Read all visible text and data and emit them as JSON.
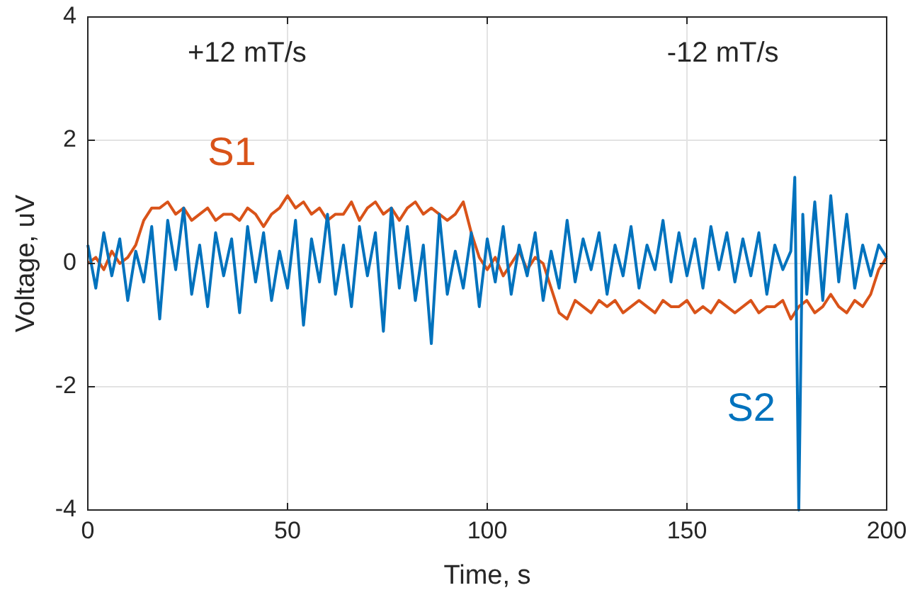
{
  "chart_data": {
    "type": "line",
    "xlabel": "Time, s",
    "ylabel": "Voltage, uV",
    "annotations": [
      "+12 mT/s",
      "-12 mT/s"
    ],
    "x": [
      0,
      2,
      4,
      6,
      8,
      10,
      12,
      14,
      16,
      18,
      20,
      22,
      24,
      26,
      28,
      30,
      32,
      34,
      36,
      38,
      40,
      42,
      44,
      46,
      48,
      50,
      52,
      54,
      56,
      58,
      60,
      62,
      64,
      66,
      68,
      70,
      72,
      74,
      76,
      78,
      80,
      82,
      84,
      86,
      88,
      90,
      92,
      94,
      96,
      98,
      100,
      102,
      104,
      106,
      108,
      110,
      112,
      114,
      116,
      118,
      120,
      122,
      124,
      126,
      128,
      130,
      132,
      134,
      136,
      138,
      140,
      142,
      144,
      146,
      148,
      150,
      152,
      154,
      156,
      158,
      160,
      162,
      164,
      166,
      168,
      170,
      172,
      174,
      176,
      178,
      180,
      182,
      184,
      186,
      188,
      190,
      192,
      194,
      196,
      198,
      200
    ],
    "series": [
      {
        "name": "S1",
        "color": "#d95319",
        "values": [
          0.0,
          0.1,
          -0.1,
          0.2,
          0.0,
          0.1,
          0.3,
          0.7,
          0.9,
          0.9,
          1.0,
          0.8,
          0.9,
          0.7,
          0.8,
          0.9,
          0.7,
          0.8,
          0.8,
          0.7,
          0.9,
          0.8,
          0.6,
          0.8,
          0.9,
          1.1,
          0.9,
          1.0,
          0.8,
          0.9,
          0.7,
          0.8,
          0.8,
          1.0,
          0.7,
          0.9,
          1.0,
          0.8,
          0.9,
          0.7,
          0.9,
          1.0,
          0.8,
          0.9,
          0.8,
          0.7,
          0.8,
          1.0,
          0.5,
          0.1,
          -0.1,
          0.1,
          -0.2,
          0.0,
          0.2,
          -0.1,
          0.1,
          0.0,
          -0.4,
          -0.8,
          -0.9,
          -0.6,
          -0.7,
          -0.8,
          -0.6,
          -0.7,
          -0.6,
          -0.8,
          -0.7,
          -0.6,
          -0.7,
          -0.8,
          -0.6,
          -0.7,
          -0.7,
          -0.6,
          -0.8,
          -0.7,
          -0.8,
          -0.6,
          -0.7,
          -0.8,
          -0.7,
          -0.6,
          -0.8,
          -0.7,
          -0.7,
          -0.6,
          -0.9,
          -0.7,
          -0.6,
          -0.8,
          -0.7,
          -0.5,
          -0.7,
          -0.8,
          -0.6,
          -0.7,
          -0.5,
          -0.1,
          0.1
        ]
      },
      {
        "name": "S2",
        "color": "#0072bd",
        "x": [
          0,
          2,
          4,
          6,
          8,
          10,
          12,
          14,
          16,
          18,
          20,
          22,
          24,
          26,
          28,
          30,
          32,
          34,
          36,
          38,
          40,
          42,
          44,
          46,
          48,
          50,
          52,
          54,
          56,
          58,
          60,
          62,
          64,
          66,
          68,
          70,
          72,
          74,
          76,
          78,
          80,
          82,
          84,
          86,
          88,
          90,
          92,
          94,
          96,
          98,
          100,
          102,
          104,
          106,
          108,
          110,
          112,
          114,
          116,
          118,
          120,
          122,
          124,
          126,
          128,
          130,
          132,
          134,
          136,
          138,
          140,
          142,
          144,
          146,
          148,
          150,
          152,
          154,
          156,
          158,
          160,
          162,
          164,
          166,
          168,
          170,
          172,
          174,
          176,
          177,
          178,
          179,
          180,
          182,
          184,
          186,
          188,
          190,
          192,
          194,
          196,
          198,
          200
        ],
        "values": [
          0.3,
          -0.4,
          0.5,
          -0.2,
          0.4,
          -0.6,
          0.2,
          -0.3,
          0.6,
          -0.9,
          0.7,
          -0.1,
          0.9,
          -0.5,
          0.3,
          -0.7,
          0.5,
          -0.2,
          0.4,
          -0.8,
          0.6,
          -0.3,
          0.5,
          -0.6,
          0.2,
          -0.4,
          0.7,
          -1.0,
          0.4,
          -0.3,
          0.8,
          -0.5,
          0.3,
          -0.7,
          0.6,
          -0.2,
          0.5,
          -1.1,
          0.9,
          -0.4,
          0.6,
          -0.6,
          0.3,
          -1.3,
          0.8,
          -0.5,
          0.2,
          -0.4,
          0.5,
          -0.7,
          0.4,
          -0.3,
          0.6,
          -0.5,
          0.3,
          -0.2,
          0.5,
          -0.6,
          0.2,
          -0.4,
          0.7,
          -0.3,
          0.4,
          -0.1,
          0.5,
          -0.5,
          0.3,
          -0.2,
          0.6,
          -0.4,
          0.3,
          -0.1,
          0.7,
          -0.3,
          0.5,
          -0.2,
          0.4,
          -0.4,
          0.6,
          -0.1,
          0.5,
          -0.3,
          0.4,
          -0.2,
          0.5,
          -0.5,
          0.3,
          -0.1,
          0.2,
          1.4,
          -4,
          0.8,
          -0.5,
          1.0,
          -0.6,
          1.1,
          -0.3,
          0.8,
          -0.4,
          0.3,
          -0.2,
          0.3,
          0.1
        ]
      }
    ],
    "xlim": [
      0,
      200
    ],
    "xticks": [
      0,
      50,
      100,
      150,
      200
    ],
    "ylim": [
      -4,
      4
    ],
    "yticks": [
      -4,
      -2,
      0,
      2,
      4
    ],
    "grid": true,
    "line_style": "solid",
    "marker": "none"
  }
}
